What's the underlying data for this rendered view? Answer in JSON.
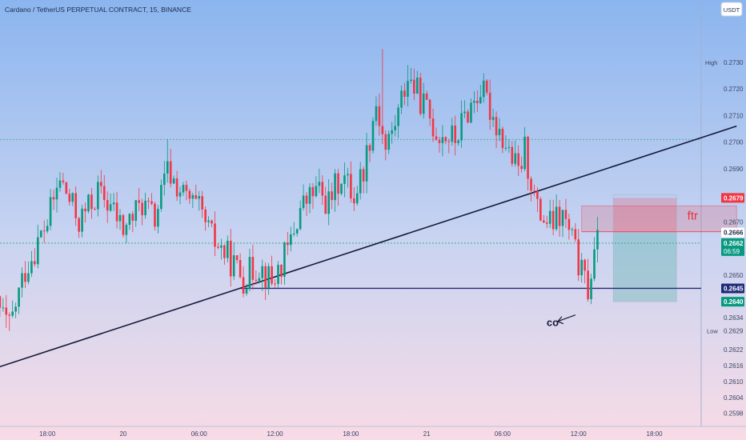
{
  "header": {
    "title": "Cardano / TetherUS PERPETUAL CONTRACT, 15, BINANCE",
    "currency_button": "USDT"
  },
  "chart_data": {
    "type": "candlestick",
    "symbol": "Cardano / TetherUS PERPETUAL CONTRACT",
    "interval": "15",
    "exchange": "BINANCE",
    "y_range": [
      0.2594,
      0.2745
    ],
    "y_ticks": [
      "0.2730",
      "0.2720",
      "0.2710",
      "0.2700",
      "0.2690",
      "0.2679",
      "0.2670",
      "0.2666",
      "0.2662",
      "0.2650",
      "0.2645",
      "0.2640",
      "0.2634",
      "0.2629",
      "0.2622",
      "0.2616",
      "0.2610",
      "0.2604",
      "0.2598"
    ],
    "plain_ticks": [
      0.272,
      0.271,
      0.27,
      0.269,
      0.267,
      0.265,
      0.2634,
      0.2622,
      0.2616,
      0.261,
      0.2604,
      0.2598
    ],
    "x_labels": [
      {
        "t": "18:00",
        "i": 17
      },
      {
        "t": "20",
        "i": 41
      },
      {
        "t": "06:00",
        "i": 65
      },
      {
        "t": "12:00",
        "i": 89
      },
      {
        "t": "18:00",
        "i": 113
      },
      {
        "t": "21",
        "i": 137
      },
      {
        "t": "06:00",
        "i": 161
      },
      {
        "t": "12:00",
        "i": 185
      },
      {
        "t": "18:00",
        "i": 209
      }
    ],
    "high": {
      "label": "High",
      "value": "0.2730"
    },
    "low": {
      "label": "Low",
      "value": "0.2629"
    },
    "current": {
      "value": "0.2662",
      "countdown": "06:59"
    },
    "markers": [
      {
        "value": "0.2679",
        "color": "#f23645"
      },
      {
        "value": "0.2666",
        "color": "#ffffff"
      },
      {
        "value": "0.2645",
        "color": "#1f2a7a"
      },
      {
        "value": "0.2640",
        "color": "#089981"
      }
    ],
    "dotted_level": 0.2701,
    "horizontal_line": 0.2645,
    "trendline": {
      "from": {
        "i": -2,
        "p": 0.2614
      },
      "to": {
        "i": 235,
        "p": 0.2706
      }
    },
    "support_from_index": 78,
    "fvg_zone": {
      "from_index": 186,
      "to_index": 235,
      "low": 0.26663,
      "high": 0.2676,
      "label": "ftr"
    },
    "position": {
      "from_index": 196,
      "to_index": 216,
      "entry": 0.2666,
      "stop": 0.2679,
      "target": 0.264
    },
    "annotation": {
      "text": "co",
      "index": 182,
      "price": 0.2638
    },
    "anchors": [
      {
        "i": 0,
        "p": 0.2641
      },
      {
        "i": 5,
        "p": 0.263
      },
      {
        "i": 10,
        "p": 0.2652
      },
      {
        "i": 17,
        "p": 0.267
      },
      {
        "i": 21,
        "p": 0.2686
      },
      {
        "i": 27,
        "p": 0.267
      },
      {
        "i": 33,
        "p": 0.2681
      },
      {
        "i": 37,
        "p": 0.2676
      },
      {
        "i": 41,
        "p": 0.2667
      },
      {
        "i": 47,
        "p": 0.2677
      },
      {
        "i": 51,
        "p": 0.2671
      },
      {
        "i": 55,
        "p": 0.2689
      },
      {
        "i": 60,
        "p": 0.268
      },
      {
        "i": 65,
        "p": 0.2674
      },
      {
        "i": 69,
        "p": 0.2664
      },
      {
        "i": 74,
        "p": 0.2657
      },
      {
        "i": 79,
        "p": 0.2649
      },
      {
        "i": 84,
        "p": 0.2654
      },
      {
        "i": 88,
        "p": 0.2647
      },
      {
        "i": 93,
        "p": 0.2659
      },
      {
        "i": 97,
        "p": 0.2675
      },
      {
        "i": 102,
        "p": 0.2682
      },
      {
        "i": 106,
        "p": 0.2677
      },
      {
        "i": 110,
        "p": 0.2688
      },
      {
        "i": 114,
        "p": 0.268
      },
      {
        "i": 117,
        "p": 0.269
      },
      {
        "i": 121,
        "p": 0.2715
      },
      {
        "i": 124,
        "p": 0.2697
      },
      {
        "i": 128,
        "p": 0.2711
      },
      {
        "i": 131,
        "p": 0.2725
      },
      {
        "i": 136,
        "p": 0.2714
      },
      {
        "i": 140,
        "p": 0.2704
      },
      {
        "i": 146,
        "p": 0.2701
      },
      {
        "i": 150,
        "p": 0.2712
      },
      {
        "i": 154,
        "p": 0.272
      },
      {
        "i": 158,
        "p": 0.271
      },
      {
        "i": 162,
        "p": 0.2699
      },
      {
        "i": 166,
        "p": 0.2688
      },
      {
        "i": 168,
        "p": 0.2697
      },
      {
        "i": 172,
        "p": 0.2674
      },
      {
        "i": 176,
        "p": 0.2669
      },
      {
        "i": 180,
        "p": 0.2672
      },
      {
        "i": 183,
        "p": 0.2663
      },
      {
        "i": 186,
        "p": 0.265
      },
      {
        "i": 188,
        "p": 0.2645
      },
      {
        "i": 191,
        "p": 0.2662
      }
    ]
  }
}
